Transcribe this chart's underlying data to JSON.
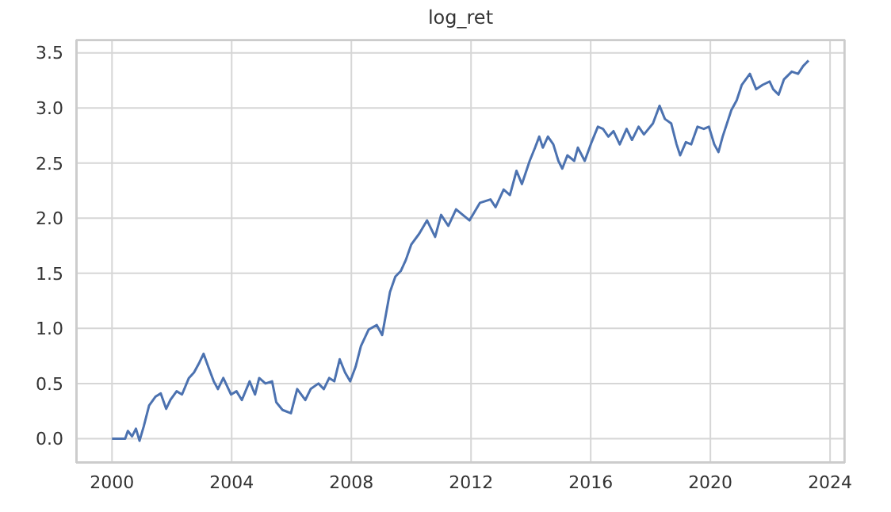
{
  "chart_data": {
    "type": "line",
    "title": "log_ret",
    "x": [
      2000,
      2000.44,
      2000.53,
      2000.67,
      2000.8,
      2000.92,
      2001.06,
      2001.24,
      2001.45,
      2001.63,
      2001.81,
      2001.95,
      2002.16,
      2002.34,
      2002.57,
      2002.74,
      2002.92,
      2003.06,
      2003.22,
      2003.4,
      2003.54,
      2003.72,
      2003.98,
      2004.16,
      2004.34,
      2004.6,
      2004.78,
      2004.92,
      2005.13,
      2005.35,
      2005.49,
      2005.7,
      2005.98,
      2006.19,
      2006.46,
      2006.64,
      2006.9,
      2007.08,
      2007.26,
      2007.43,
      2007.61,
      2007.79,
      2007.96,
      2008.14,
      2008.32,
      2008.58,
      2008.85,
      2009.03,
      2009.29,
      2009.47,
      2009.65,
      2009.82,
      2010,
      2010.27,
      2010.53,
      2010.8,
      2011,
      2011.24,
      2011.5,
      2011.95,
      2012.3,
      2012.65,
      2012.82,
      2013.09,
      2013.3,
      2013.52,
      2013.7,
      2013.96,
      2014.14,
      2014.28,
      2014.4,
      2014.57,
      2014.75,
      2014.92,
      2015.05,
      2015.22,
      2015.45,
      2015.57,
      2015.8,
      2016.03,
      2016.24,
      2016.41,
      2016.59,
      2016.76,
      2016.97,
      2017.2,
      2017.38,
      2017.6,
      2017.78,
      2018.08,
      2018.3,
      2018.48,
      2018.69,
      2018.87,
      2018.99,
      2019.18,
      2019.36,
      2019.57,
      2019.78,
      2019.95,
      2020.13,
      2020.27,
      2020.41,
      2020.7,
      2020.88,
      2021.05,
      2021.32,
      2021.53,
      2021.75,
      2021.98,
      2022.1,
      2022.28,
      2022.46,
      2022.72,
      2022.93,
      2023.1,
      2023.28
    ],
    "series": [
      {
        "color": "#4c72b0",
        "values": [
          0,
          0,
          0.07,
          0.02,
          0.09,
          -0.02,
          0.11,
          0.3,
          0.38,
          0.41,
          0.27,
          0.35,
          0.43,
          0.4,
          0.55,
          0.6,
          0.69,
          0.77,
          0.65,
          0.52,
          0.45,
          0.55,
          0.4,
          0.43,
          0.35,
          0.52,
          0.4,
          0.55,
          0.5,
          0.52,
          0.33,
          0.26,
          0.23,
          0.45,
          0.35,
          0.45,
          0.5,
          0.45,
          0.55,
          0.52,
          0.72,
          0.6,
          0.52,
          0.65,
          0.84,
          0.99,
          1.03,
          0.94,
          1.33,
          1.47,
          1.52,
          1.62,
          1.76,
          1.86,
          1.98,
          1.83,
          2.03,
          1.93,
          2.08,
          1.98,
          2.14,
          2.17,
          2.1,
          2.26,
          2.21,
          2.43,
          2.31,
          2.52,
          2.64,
          2.74,
          2.64,
          2.74,
          2.67,
          2.52,
          2.45,
          2.57,
          2.52,
          2.64,
          2.52,
          2.69,
          2.83,
          2.81,
          2.74,
          2.79,
          2.67,
          2.81,
          2.71,
          2.83,
          2.76,
          2.86,
          3.02,
          2.9,
          2.86,
          2.67,
          2.57,
          2.69,
          2.67,
          2.83,
          2.81,
          2.83,
          2.67,
          2.6,
          2.74,
          2.98,
          3.07,
          3.21,
          3.31,
          3.17,
          3.21,
          3.24,
          3.17,
          3.12,
          3.26,
          3.33,
          3.31,
          3.38,
          3.43
        ]
      }
    ],
    "xlim": [
      1998.8,
      2024.5
    ],
    "xticks": [
      2000,
      2004,
      2008,
      2012,
      2016,
      2020,
      2024
    ],
    "ylim": [
      -0.22,
      3.62
    ],
    "yticks": [
      {
        "value": 0,
        "label": "0.0"
      },
      {
        "value": 0.5,
        "label": "0.5"
      },
      {
        "value": 1,
        "label": "1.0"
      },
      {
        "value": 1.5,
        "label": "1.5"
      },
      {
        "value": 2,
        "label": "2.0"
      },
      {
        "value": 2.5,
        "label": "2.5"
      },
      {
        "value": 3,
        "label": "3.0"
      },
      {
        "value": 3.5,
        "label": "3.5"
      }
    ],
    "grid": true,
    "legend": false,
    "marker": "none",
    "line_style": "solid"
  }
}
